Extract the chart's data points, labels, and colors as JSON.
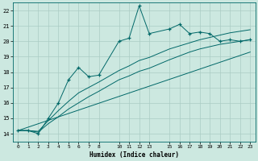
{
  "xlabel": "Humidex (Indice chaleur)",
  "bg_color": "#cce8e0",
  "grid_color": "#aaccc4",
  "line_color": "#006868",
  "xlim": [
    -0.5,
    23.5
  ],
  "ylim": [
    13.5,
    22.5
  ],
  "xticks": [
    0,
    1,
    2,
    3,
    4,
    5,
    6,
    7,
    8,
    10,
    11,
    12,
    13,
    15,
    16,
    17,
    18,
    19,
    20,
    21,
    22,
    23
  ],
  "yticks": [
    14,
    15,
    16,
    17,
    18,
    19,
    20,
    21,
    22
  ],
  "main_x": [
    0,
    1,
    2,
    3,
    4,
    5,
    6,
    7,
    8,
    10,
    11,
    12,
    13,
    15,
    16,
    17,
    18,
    19,
    20,
    21,
    22,
    23
  ],
  "main_y": [
    14.2,
    14.2,
    14.0,
    15.0,
    16.0,
    17.5,
    18.3,
    17.7,
    17.8,
    20.0,
    20.2,
    22.3,
    20.5,
    20.8,
    21.1,
    20.5,
    20.6,
    20.5,
    20.0,
    20.1,
    20.0,
    20.1
  ],
  "line1_x": [
    0,
    1,
    2,
    3,
    4,
    5,
    6,
    7,
    8,
    10,
    11,
    12,
    13,
    15,
    16,
    17,
    18,
    19,
    20,
    21,
    22,
    23
  ],
  "line1_y": [
    14.2,
    14.2,
    14.15,
    14.85,
    15.5,
    16.1,
    16.65,
    17.0,
    17.35,
    18.1,
    18.4,
    18.75,
    18.95,
    19.5,
    19.7,
    19.9,
    20.1,
    20.25,
    20.4,
    20.55,
    20.65,
    20.75
  ],
  "line2_x": [
    0,
    1,
    2,
    3,
    4,
    5,
    6,
    7,
    8,
    10,
    11,
    12,
    13,
    15,
    16,
    17,
    18,
    19,
    20,
    21,
    22,
    23
  ],
  "line2_y": [
    14.2,
    14.2,
    14.1,
    14.65,
    15.1,
    15.6,
    16.0,
    16.4,
    16.75,
    17.5,
    17.75,
    18.05,
    18.25,
    18.8,
    19.05,
    19.3,
    19.5,
    19.65,
    19.8,
    19.9,
    20.0,
    20.1
  ],
  "line3_x": [
    0,
    23
  ],
  "line3_y": [
    14.2,
    19.3
  ]
}
